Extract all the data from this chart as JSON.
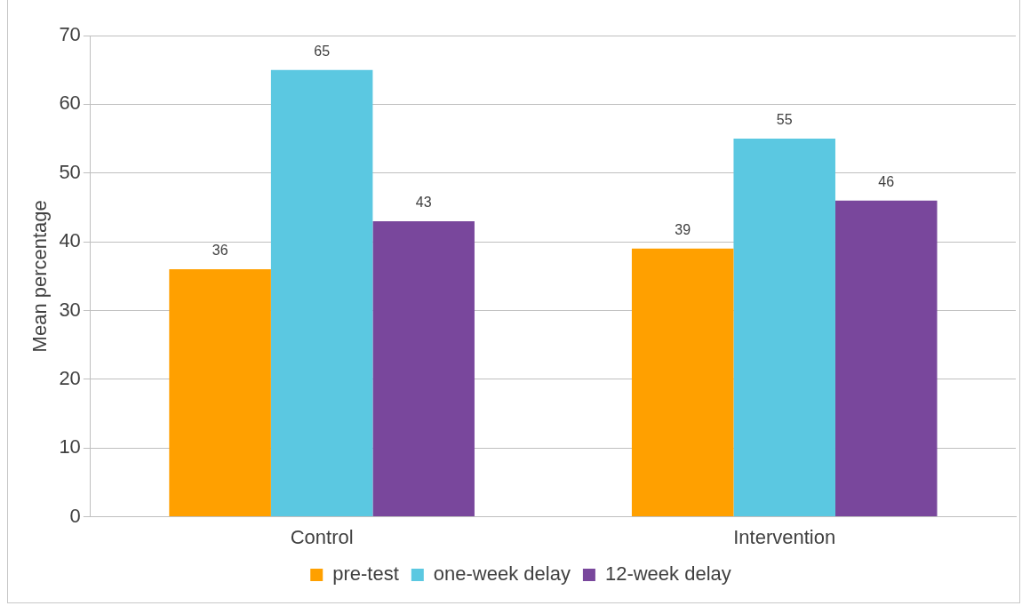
{
  "chart_data": {
    "type": "bar",
    "categories": [
      "Control",
      "Intervention"
    ],
    "series": [
      {
        "name": "pre-test",
        "color": "#ffa000",
        "values": [
          36,
          39
        ]
      },
      {
        "name": "one-week delay",
        "color": "#5bc8e1",
        "values": [
          65,
          55
        ]
      },
      {
        "name": "12-week delay",
        "color": "#79479c",
        "values": [
          43,
          46
        ]
      }
    ],
    "ylabel": "Mean percentage",
    "ylim": [
      0,
      70
    ],
    "yticks": [
      0,
      10,
      20,
      30,
      40,
      50,
      60,
      70
    ],
    "grid": "y",
    "legend": "bottom",
    "data_labels": true
  }
}
